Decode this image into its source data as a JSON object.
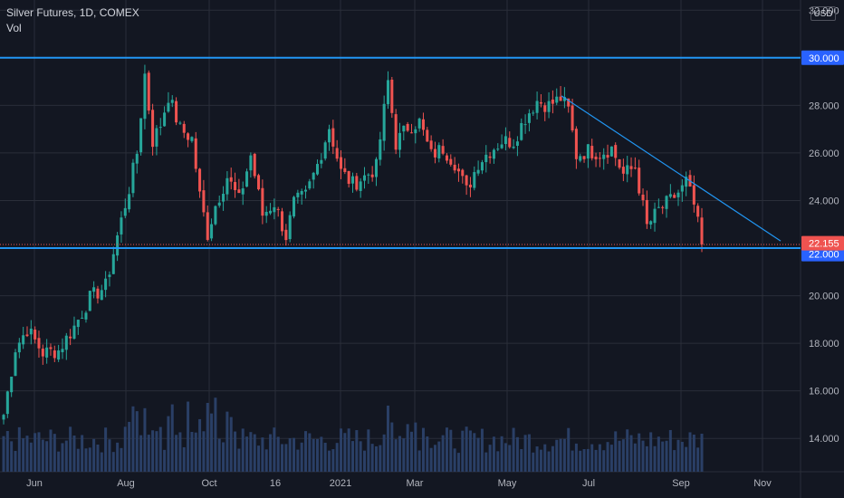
{
  "legend": {
    "title": "Silver Futures, 1D, COMEX",
    "volume_label": "Vol"
  },
  "currency_label": "USD",
  "colors": {
    "background": "#131722",
    "grid": "#2a2e39",
    "up": "#26a69a",
    "down": "#ef5350",
    "level_line": "#2962ff",
    "trendline": "#2196f3",
    "volume": "#2a3f66",
    "axis_text": "#b2b5be",
    "last_price_badge": "#ef5350",
    "level_badge": "#2962ff"
  },
  "chart_data": {
    "type": "candlestick",
    "title": "Silver Futures, 1D, COMEX",
    "x_ticks": [
      "Jun",
      "Aug",
      "Oct",
      "16",
      "2021",
      "Mar",
      "May",
      "Jul",
      "Sep",
      "Nov"
    ],
    "y_ticks": [
      14.0,
      16.0,
      18.0,
      20.0,
      22.0,
      24.0,
      26.0,
      28.0,
      30.0,
      32.0
    ],
    "ylim": [
      13.4,
      32.2
    ],
    "grid": true,
    "series": [
      {
        "name": "price",
        "type": "candlestick"
      },
      {
        "name": "Vol",
        "type": "histogram"
      }
    ],
    "price_path": [
      [
        0,
        15.0
      ],
      [
        3,
        17.8
      ],
      [
        6,
        18.6
      ],
      [
        10,
        17.6
      ],
      [
        14,
        17.7
      ],
      [
        18,
        18.7
      ],
      [
        22,
        19.9
      ],
      [
        26,
        20.4
      ],
      [
        29,
        22.5
      ],
      [
        32,
        24.5
      ],
      [
        34,
        26.0
      ],
      [
        36,
        29.3
      ],
      [
        38,
        26.5
      ],
      [
        40,
        27.2
      ],
      [
        42,
        28.4
      ],
      [
        45,
        27.0
      ],
      [
        48,
        26.6
      ],
      [
        50,
        24.2
      ],
      [
        52,
        22.6
      ],
      [
        54,
        23.8
      ],
      [
        57,
        25.0
      ],
      [
        60,
        24.0
      ],
      [
        63,
        25.9
      ],
      [
        66,
        23.4
      ],
      [
        69,
        23.9
      ],
      [
        72,
        22.5
      ],
      [
        74,
        23.9
      ],
      [
        77,
        24.2
      ],
      [
        80,
        25.5
      ],
      [
        83,
        27.1
      ],
      [
        86,
        25.2
      ],
      [
        89,
        24.7
      ],
      [
        92,
        25.0
      ],
      [
        95,
        25.4
      ],
      [
        98,
        29.0
      ],
      [
        100,
        26.4
      ],
      [
        103,
        27.1
      ],
      [
        106,
        27.3
      ],
      [
        109,
        25.9
      ],
      [
        112,
        26.2
      ],
      [
        115,
        25.6
      ],
      [
        118,
        24.4
      ],
      [
        121,
        25.6
      ],
      [
        124,
        26.1
      ],
      [
        127,
        26.5
      ],
      [
        130,
        26.5
      ],
      [
        133,
        27.5
      ],
      [
        136,
        28.2
      ],
      [
        139,
        28.0
      ],
      [
        142,
        28.3
      ],
      [
        144,
        27.8
      ],
      [
        146,
        25.9
      ],
      [
        149,
        26.1
      ],
      [
        152,
        26.0
      ],
      [
        155,
        26.2
      ],
      [
        158,
        25.1
      ],
      [
        161,
        25.4
      ],
      [
        164,
        22.9
      ],
      [
        167,
        23.6
      ],
      [
        170,
        24.0
      ],
      [
        173,
        24.5
      ],
      [
        174,
        24.8
      ],
      [
        176,
        23.8
      ],
      [
        178,
        22.155
      ]
    ],
    "horizontal_levels": [
      30.0,
      22.0
    ],
    "last_price": 22.155,
    "trendline": {
      "from": {
        "x": "Jun",
        "y": 28.4
      },
      "to": {
        "x": "Nov",
        "y": 22.3
      }
    },
    "price_labels": {
      "level_high": "30.000",
      "last": "22.155",
      "level_low": "22.000"
    }
  }
}
